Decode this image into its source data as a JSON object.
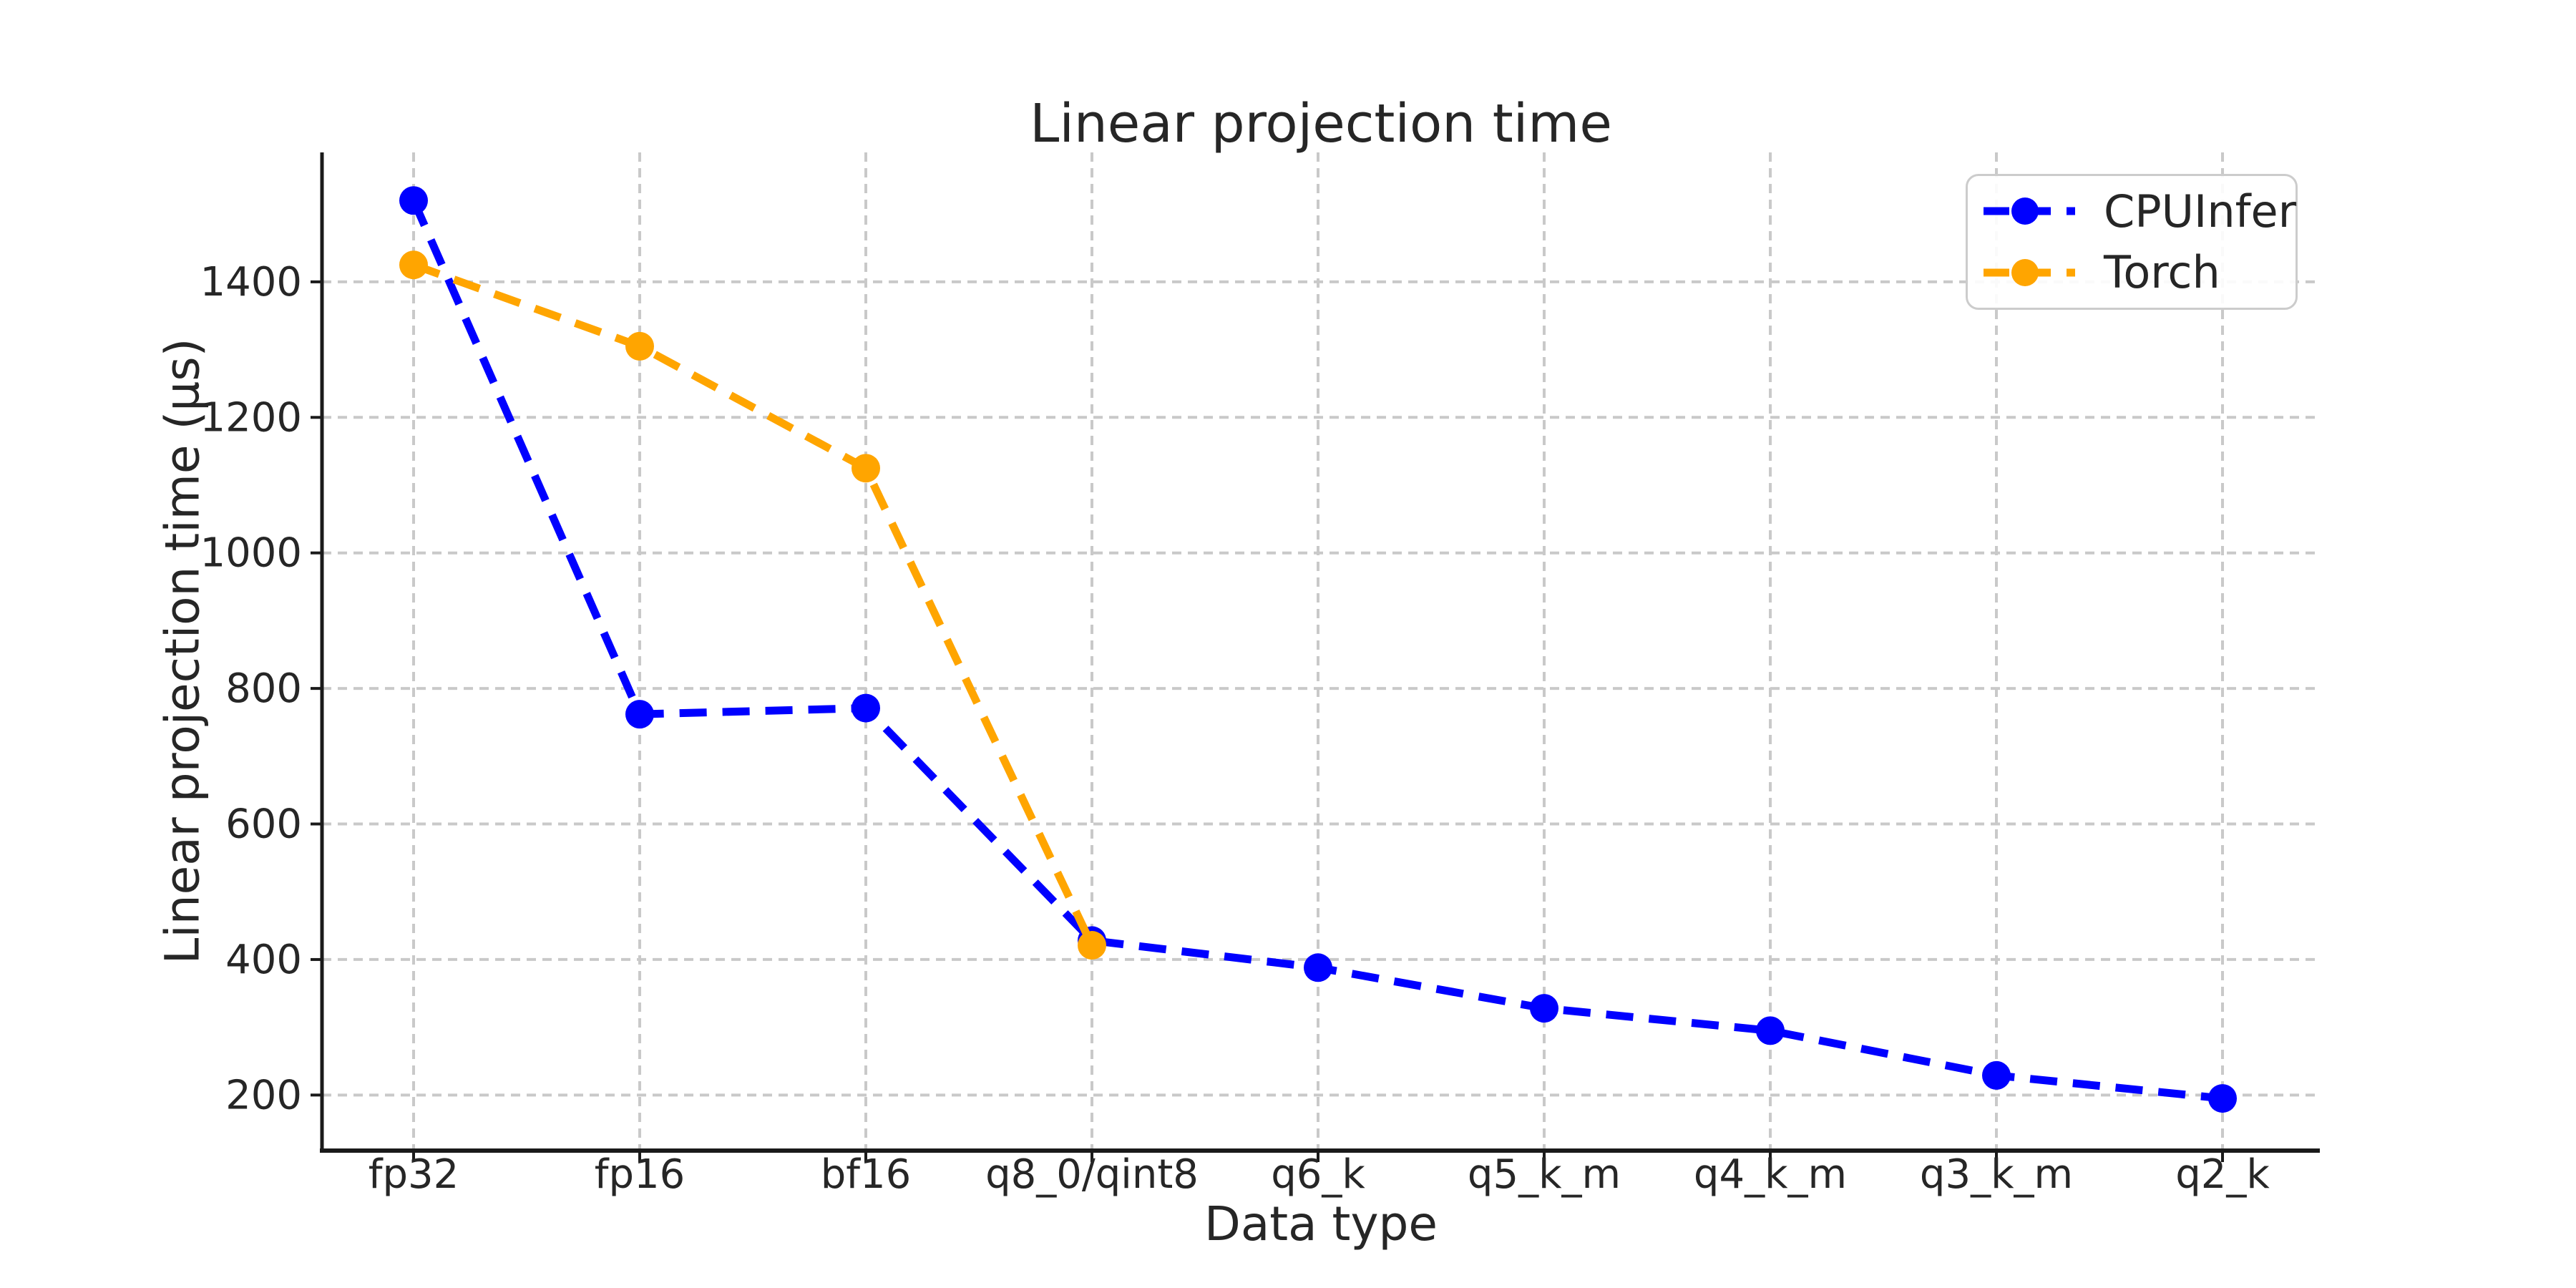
{
  "figure": {
    "background": "#ffffff"
  },
  "chart_data": {
    "type": "line",
    "title": "Linear projection time",
    "xlabel": "Data type",
    "ylabel": "Linear projection time (µs)",
    "categories": [
      "fp32",
      "fp16",
      "bf16",
      "q8_0/qint8",
      "q6_k",
      "q5_k_m",
      "q4_k_m",
      "q3_k_m",
      "q2_k"
    ],
    "series": [
      {
        "name": "CPUInfer",
        "color": "#0000ff",
        "values": [
          1520,
          762,
          771,
          428,
          388,
          328,
          295,
          229,
          195
        ]
      },
      {
        "name": "Torch",
        "color": "#ffa500",
        "values": [
          1425,
          1305,
          1125,
          421,
          null,
          null,
          null,
          null,
          null
        ]
      }
    ],
    "yticks": [
      200,
      400,
      600,
      800,
      1000,
      1200,
      1400
    ],
    "ylim": [
      118,
      1591
    ],
    "grid": true,
    "grid_style": "dashed",
    "line_style": "dashed",
    "marker": "circle",
    "legend_position": "upper right",
    "colors": {
      "grid": "#c9c9c9",
      "spine": "#1a1a1a",
      "text": "#262626",
      "legend_border": "#cccccc"
    }
  }
}
